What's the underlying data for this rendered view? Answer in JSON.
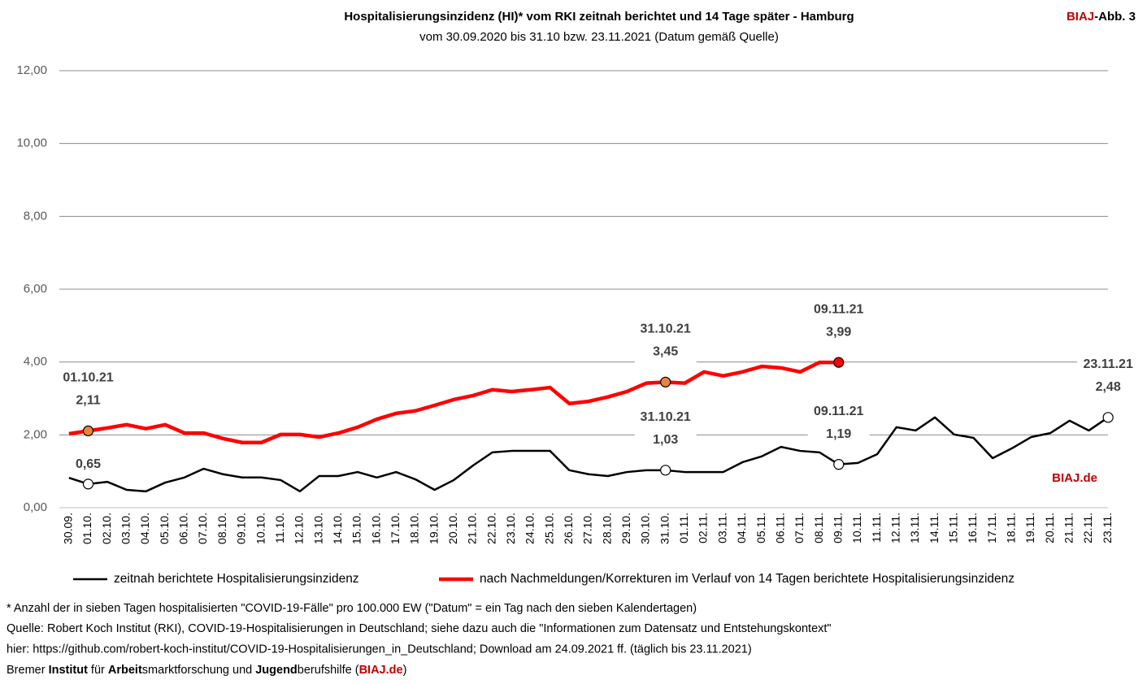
{
  "chart_data": {
    "type": "line",
    "title": "Hospitalisierungsinzidenz (HI)* vom RKI zeitnah berichtet und 14 Tage später - Hamburg",
    "subtitle": "vom 30.09.2020 bis 31.10 bzw. 23.11.2021 (Datum gemäß Quelle)",
    "badge": [
      "BIAJ",
      "-Abb. 3"
    ],
    "watermark": "BIAJ.de",
    "categories": [
      "30.09.",
      "01.10.",
      "02.10.",
      "03.10.",
      "04.10.",
      "05.10.",
      "06.10.",
      "07.10.",
      "08.10.",
      "09.10.",
      "10.10.",
      "11.10.",
      "12.10.",
      "13.10.",
      "14.10.",
      "15.10.",
      "16.10.",
      "17.10.",
      "18.10.",
      "19.10.",
      "20.10.",
      "21.10.",
      "22.10.",
      "23.10.",
      "24.10.",
      "25.10.",
      "26.10.",
      "27.10.",
      "28.10.",
      "29.10.",
      "30.10.",
      "31.10.",
      "01.11.",
      "02.11.",
      "03.11.",
      "04.11.",
      "05.11.",
      "06.11.",
      "07.11.",
      "08.11.",
      "09.11.",
      "10.11.",
      "11.11.",
      "12.11.",
      "13.11.",
      "14.11.",
      "15.11.",
      "16.11.",
      "17.11.",
      "18.11.",
      "19.11.",
      "20.11.",
      "21.11.",
      "22.11.",
      "23.11."
    ],
    "ylim": [
      0,
      12
    ],
    "yticks": [
      {
        "value": 0,
        "label": "0,00"
      },
      {
        "value": 2,
        "label": "2,00"
      },
      {
        "value": 4,
        "label": "4,00"
      },
      {
        "value": 6,
        "label": "6,00"
      },
      {
        "value": 8,
        "label": "8,00"
      },
      {
        "value": 10,
        "label": "10,00"
      },
      {
        "value": 12,
        "label": "12,00"
      }
    ],
    "grid": true,
    "series": [
      {
        "name": "zeitnah berichtete Hospitalisierungsinzidenz",
        "color": "#000000",
        "width": 2.5,
        "values": [
          0.82,
          0.65,
          0.71,
          0.49,
          0.45,
          0.69,
          0.83,
          1.07,
          0.92,
          0.83,
          0.83,
          0.76,
          0.45,
          0.87,
          0.87,
          0.98,
          0.83,
          0.98,
          0.78,
          0.49,
          0.76,
          1.16,
          1.52,
          1.56,
          1.56,
          1.56,
          1.03,
          0.92,
          0.87,
          0.98,
          1.03,
          1.03,
          0.98,
          0.98,
          0.98,
          1.25,
          1.41,
          1.67,
          1.56,
          1.52,
          1.19,
          1.23,
          1.47,
          2.21,
          2.12,
          2.48,
          2.01,
          1.92,
          1.36,
          1.63,
          1.94,
          2.05,
          2.39,
          2.12,
          2.48
        ],
        "value_labels": [
          null,
          "0,65",
          null,
          null,
          null,
          null,
          null,
          null,
          null,
          null,
          null,
          null,
          null,
          null,
          null,
          null,
          null,
          null,
          null,
          null,
          null,
          null,
          null,
          null,
          null,
          null,
          null,
          null,
          null,
          null,
          null,
          "1,03",
          null,
          null,
          null,
          null,
          null,
          null,
          null,
          null,
          "1,19",
          null,
          null,
          null,
          null,
          null,
          null,
          null,
          null,
          null,
          null,
          null,
          null,
          null,
          "2,48"
        ],
        "date_labels": [
          null,
          null,
          null,
          null,
          null,
          null,
          null,
          null,
          null,
          null,
          null,
          null,
          null,
          null,
          null,
          null,
          null,
          null,
          null,
          null,
          null,
          null,
          null,
          null,
          null,
          null,
          null,
          null,
          null,
          null,
          null,
          "31.10.21",
          null,
          null,
          null,
          null,
          null,
          null,
          null,
          null,
          "09.11.21",
          null,
          null,
          null,
          null,
          null,
          null,
          null,
          null,
          null,
          null,
          null,
          null,
          null,
          "23.11.21"
        ],
        "marker_fills": [
          null,
          "#ffffff",
          null,
          null,
          null,
          null,
          null,
          null,
          null,
          null,
          null,
          null,
          null,
          null,
          null,
          null,
          null,
          null,
          null,
          null,
          null,
          null,
          null,
          null,
          null,
          null,
          null,
          null,
          null,
          null,
          null,
          "#ffffff",
          null,
          null,
          null,
          null,
          null,
          null,
          null,
          null,
          "#ffffff",
          null,
          null,
          null,
          null,
          null,
          null,
          null,
          null,
          null,
          null,
          null,
          null,
          null,
          "#ffffff"
        ]
      },
      {
        "name": "nach Nachmeldungen/Korrekturen im Verlauf von 14 Tagen berichtete Hospitalisierungsinzidenz",
        "color": "#ff0000",
        "width": 4.5,
        "values": [
          2.03,
          2.11,
          2.19,
          2.28,
          2.17,
          2.28,
          2.05,
          2.05,
          1.9,
          1.79,
          1.79,
          2.01,
          2.01,
          1.94,
          2.05,
          2.21,
          2.43,
          2.59,
          2.66,
          2.81,
          2.97,
          3.08,
          3.24,
          3.19,
          3.24,
          3.3,
          2.86,
          2.92,
          3.04,
          3.19,
          3.42,
          3.45,
          3.42,
          3.73,
          3.62,
          3.73,
          3.88,
          3.84,
          3.73,
          3.99,
          3.99,
          null,
          null,
          null,
          null,
          null,
          null,
          null,
          null,
          null,
          null,
          null,
          null,
          null,
          null
        ],
        "value_labels": [
          null,
          "2,11",
          null,
          null,
          null,
          null,
          null,
          null,
          null,
          null,
          null,
          null,
          null,
          null,
          null,
          null,
          null,
          null,
          null,
          null,
          null,
          null,
          null,
          null,
          null,
          null,
          null,
          null,
          null,
          null,
          null,
          "3,45",
          null,
          null,
          null,
          null,
          null,
          null,
          null,
          null,
          "3,99",
          null,
          null,
          null,
          null,
          null,
          null,
          null,
          null,
          null,
          null,
          null,
          null,
          null,
          null
        ],
        "date_labels": [
          null,
          "01.10.21",
          null,
          null,
          null,
          null,
          null,
          null,
          null,
          null,
          null,
          null,
          null,
          null,
          null,
          null,
          null,
          null,
          null,
          null,
          null,
          null,
          null,
          null,
          null,
          null,
          null,
          null,
          null,
          null,
          null,
          "31.10.21",
          null,
          null,
          null,
          null,
          null,
          null,
          null,
          null,
          "09.11.21",
          null,
          null,
          null,
          null,
          null,
          null,
          null,
          null,
          null,
          null,
          null,
          null,
          null,
          null
        ],
        "marker_fills": [
          null,
          "#e8843c",
          null,
          null,
          null,
          null,
          null,
          null,
          null,
          null,
          null,
          null,
          null,
          null,
          null,
          null,
          null,
          null,
          null,
          null,
          null,
          null,
          null,
          null,
          null,
          null,
          null,
          null,
          null,
          null,
          null,
          "#e8843c",
          null,
          null,
          null,
          null,
          null,
          null,
          null,
          null,
          "#ff0000",
          null,
          null,
          null,
          null,
          null,
          null,
          null,
          null,
          null,
          null,
          null,
          null,
          null,
          null
        ]
      }
    ],
    "footnotes": [
      "* Anzahl der in sieben Tagen hospitalisierten \"COVID-19-Fälle\" pro 100.000 EW (\"Datum\" = ein Tag nach den sieben Kalendertagen)",
      "Quelle: Robert Koch Institut (RKI), COVID-19-Hospitalisierungen in Deutschland; siehe dazu auch die \"Informationen zum Datensatz und Entstehungskontext\"",
      "hier: https://github.com/robert-koch-institut/COVID-19-Hospitalisierungen_in_Deutschland; Download am 24.09.2021 ff. (täglich bis 23.11.2021)"
    ],
    "credit": [
      {
        "text": "Bremer ",
        "bold": false
      },
      {
        "text": "Institut",
        "bold": true
      },
      {
        "text": " für ",
        "bold": false
      },
      {
        "text": "Arbeit",
        "bold": true
      },
      {
        "text": "smarktforschung und ",
        "bold": false
      },
      {
        "text": "Jugend",
        "bold": true
      },
      {
        "text": "berufshilfe (",
        "bold": false
      },
      {
        "text": "BIAJ.de",
        "bold": true,
        "color": "#c00000"
      },
      {
        "text": ")",
        "bold": false
      }
    ]
  }
}
